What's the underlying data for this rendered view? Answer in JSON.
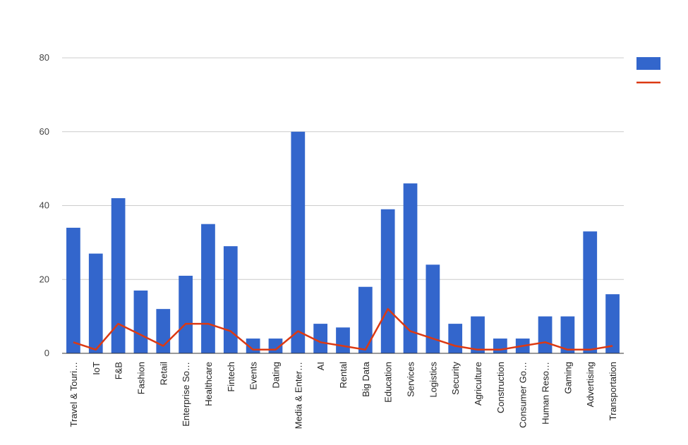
{
  "chart_data": {
    "type": "bar",
    "categories": [
      "Travel & Touri…",
      "IoT",
      "F&B",
      "Fashion",
      "Retail",
      "Enterprise So…",
      "Healthcare",
      "Fintech",
      "Events",
      "Dating",
      "Media & Enter…",
      "AI",
      "Rental",
      "Big Data",
      "Education",
      "Services",
      "Logistics",
      "Security",
      "Agriculture",
      "Construction",
      "Consumer Go…",
      "Human Reso…",
      "Gaming",
      "Advertising",
      "Transportation"
    ],
    "series": [
      {
        "type": "bar",
        "color": "#3366cc",
        "values": [
          34,
          27,
          42,
          17,
          12,
          21,
          35,
          29,
          4,
          4,
          60,
          8,
          7,
          18,
          39,
          46,
          24,
          8,
          10,
          4,
          4,
          10,
          10,
          33,
          16
        ]
      },
      {
        "type": "line",
        "color": "#dc3912",
        "values": [
          3,
          1,
          8,
          5,
          2,
          8,
          8,
          6,
          1,
          1,
          6,
          3,
          2,
          1,
          12,
          6,
          4,
          2,
          1,
          1,
          2,
          3,
          1,
          1,
          2
        ]
      }
    ],
    "ylim": [
      0,
      80
    ],
    "yticks": [
      0,
      20,
      40,
      60,
      80
    ],
    "grid": true,
    "legend": "right"
  }
}
